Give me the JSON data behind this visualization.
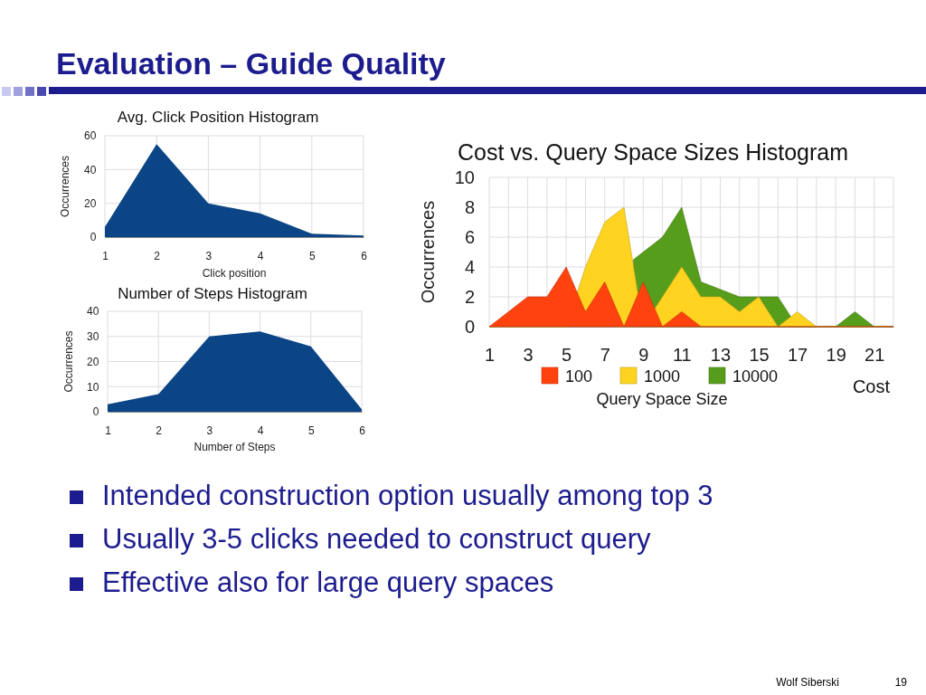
{
  "chart_data": [
    {
      "type": "other",
      "title": "Evaluation – Guide Quality",
      "annotations": [
        "Intended construction option usually among top 3",
        "Usually 3-5 clicks needed to construct query",
        "Effective also for large query spaces",
        "Wolf Siberski",
        "19"
      ]
    },
    {
      "type": "area",
      "title": "Avg. Click Position Histogram",
      "xlabel": "Click position",
      "ylabel": "Occurrences",
      "x": [
        1,
        2,
        3,
        4,
        5,
        6
      ],
      "values": [
        6,
        55,
        20,
        14,
        2,
        1
      ],
      "color": "#0b4586",
      "xlim": [
        1,
        6
      ],
      "xticks": [
        1,
        2,
        3,
        4,
        5,
        6
      ],
      "ylim": [
        0,
        60
      ],
      "yticks": [
        0,
        20,
        40,
        60
      ],
      "grid": true
    },
    {
      "type": "area",
      "title": "Number of Steps Histogram",
      "xlabel": "Number of Steps",
      "ylabel": "Occurrences",
      "x": [
        1,
        2,
        3,
        4,
        5,
        6
      ],
      "values": [
        3,
        7,
        30,
        32,
        26,
        1
      ],
      "color": "#0b4586",
      "xlim": [
        1,
        6
      ],
      "xticks": [
        1,
        2,
        3,
        4,
        5,
        6
      ],
      "ylim": [
        0,
        40
      ],
      "yticks": [
        0,
        10,
        20,
        30,
        40
      ],
      "grid": true
    },
    {
      "type": "area",
      "title": "Cost vs. Query Space Sizes Histogram",
      "xlabel": "Cost",
      "ylabel": "Occurrences",
      "legend_title": "Query Space Size",
      "legend": "bottom",
      "grid": true,
      "x": [
        1,
        2,
        3,
        4,
        5,
        6,
        7,
        8,
        9,
        10,
        11,
        12,
        13,
        14,
        15,
        16,
        17,
        18,
        19,
        20,
        21,
        22
      ],
      "series": [
        {
          "name": "100",
          "color": "#ff420e",
          "values": [
            0,
            1,
            2,
            2,
            4,
            1,
            3,
            0,
            3,
            0,
            1,
            0,
            0,
            0,
            0,
            0,
            0,
            0,
            0,
            0,
            0,
            0
          ]
        },
        {
          "name": "1000",
          "color": "#ffd320",
          "values": [
            0,
            0,
            0,
            0,
            0,
            4,
            7,
            8,
            0,
            2,
            4,
            2,
            2,
            1,
            2,
            0,
            1,
            0,
            0,
            0,
            0,
            0
          ]
        },
        {
          "name": "10000",
          "color": "#579d1c",
          "x": [
            8.5,
            9,
            10,
            11,
            12,
            14,
            16,
            17,
            18,
            19,
            20,
            21,
            22
          ],
          "values": [
            4.5,
            5,
            6,
            8,
            3,
            2,
            2,
            0,
            0,
            0,
            1,
            0,
            0
          ]
        }
      ],
      "xlim": [
        1,
        22
      ],
      "xticks": [
        1,
        {
          "value": 2,
          "label": null
        },
        3,
        {
          "value": 4,
          "label": null
        },
        5,
        {
          "value": 6,
          "label": null
        },
        7,
        {
          "value": 8,
          "label": null
        },
        9,
        {
          "value": 10,
          "label": null
        },
        11,
        {
          "value": 12,
          "label": null
        },
        13,
        {
          "value": 14,
          "label": null
        },
        15,
        {
          "value": 16,
          "label": null
        },
        17,
        {
          "value": 18,
          "label": null
        },
        19,
        {
          "value": 20,
          "label": null
        },
        21,
        {
          "value": 22,
          "label": null
        }
      ],
      "ylim": [
        0,
        10
      ],
      "yticks": [
        0,
        2,
        4,
        6,
        8,
        10
      ]
    }
  ]
}
